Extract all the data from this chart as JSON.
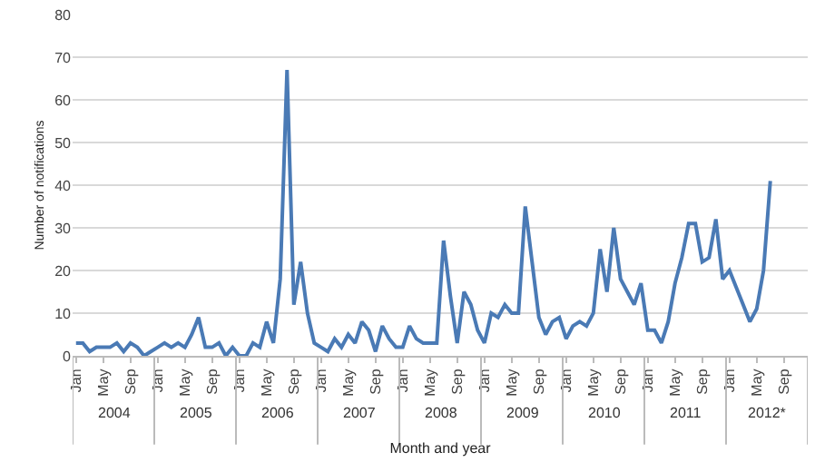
{
  "chart_data": {
    "type": "line",
    "xlabel": "Month and year",
    "ylabel": "Number of notifications",
    "categories": [
      "Jan",
      null,
      null,
      null,
      "May",
      null,
      null,
      null,
      "Sep",
      null,
      null,
      null,
      "Jan",
      null,
      null,
      null,
      "May",
      null,
      null,
      null,
      "Sep",
      null,
      null,
      null,
      "Jan",
      null,
      null,
      null,
      "May",
      null,
      null,
      null,
      "Sep",
      null,
      null,
      null,
      "Jan",
      null,
      null,
      null,
      "May",
      null,
      null,
      null,
      "Sep",
      null,
      null,
      null,
      "Jan",
      null,
      null,
      null,
      "May",
      null,
      null,
      null,
      "Sep",
      null,
      null,
      null,
      "Jan",
      null,
      null,
      null,
      "May",
      null,
      null,
      null,
      "Sep",
      null,
      null,
      null,
      "Jan",
      null,
      null,
      null,
      "May",
      null,
      null,
      null,
      "Sep",
      null,
      null,
      null,
      "Jan",
      null,
      null,
      null,
      "May",
      null,
      null,
      null,
      "Sep",
      null,
      null,
      null,
      "Jan",
      null,
      null,
      null,
      "May",
      null,
      null,
      null,
      "Sep",
      null,
      null,
      null
    ],
    "series": [
      {
        "color": "#4a7ab5",
        "values": [
          3,
          3,
          1,
          2,
          2,
          2,
          3,
          1,
          3,
          2,
          0,
          1,
          2,
          3,
          2,
          3,
          2,
          5,
          9,
          2,
          2,
          3,
          0,
          2,
          0,
          0,
          3,
          2,
          8,
          3,
          18,
          67,
          12,
          22,
          10,
          3,
          2,
          1,
          4,
          2,
          5,
          3,
          8,
          6,
          1,
          7,
          4,
          2,
          2,
          7,
          4,
          3,
          3,
          3,
          27,
          14,
          3,
          15,
          12,
          6,
          3,
          10,
          9,
          12,
          10,
          10,
          35,
          22,
          9,
          5,
          8,
          9,
          4,
          7,
          8,
          7,
          10,
          25,
          15,
          30,
          18,
          15,
          12,
          17,
          6,
          6,
          3,
          8,
          17,
          23,
          31,
          31,
          22,
          23,
          32,
          18,
          20,
          16,
          12,
          8,
          11,
          20,
          41,
          null,
          null,
          null,
          null,
          null
        ]
      }
    ],
    "annotations": [
      "2004",
      "2005",
      "2006",
      "2007",
      "2008",
      "2009",
      "2010",
      "2011",
      "2012*"
    ],
    "ylim": [
      0,
      80
    ],
    "yticks": [
      0,
      10,
      20,
      30,
      40,
      50,
      60,
      70,
      80
    ],
    "grid": "y",
    "marker": "none",
    "line_style": "solid"
  }
}
